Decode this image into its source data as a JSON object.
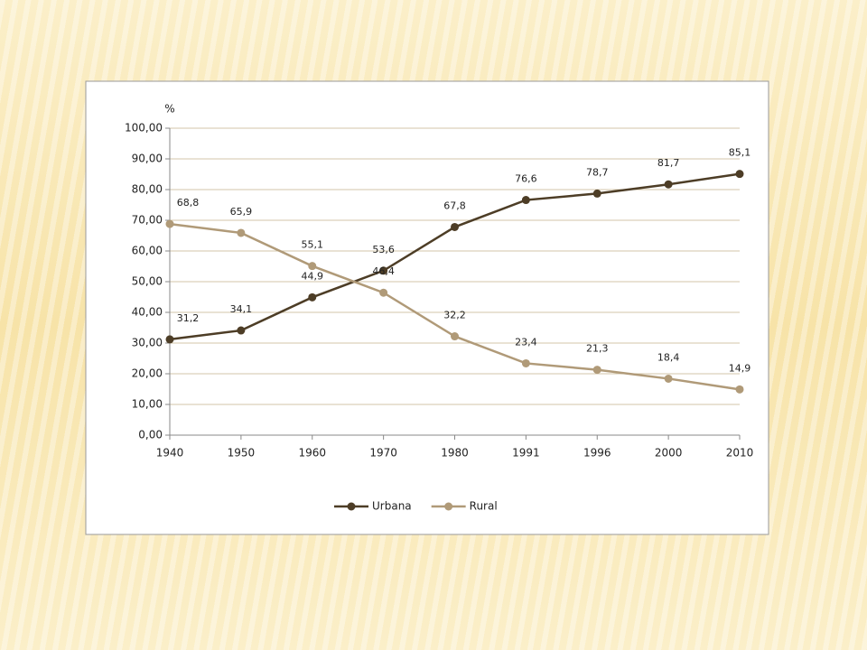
{
  "chart_data": {
    "type": "line",
    "y_label": "%",
    "categories": [
      "1940",
      "1950",
      "1960",
      "1970",
      "1980",
      "1991",
      "1996",
      "2000",
      "2010"
    ],
    "series": [
      {
        "name": "Urbana",
        "color": "#4d3d26",
        "values": [
          31.2,
          34.1,
          44.9,
          53.6,
          67.8,
          76.6,
          78.7,
          81.7,
          85.1
        ],
        "value_labels": [
          "31,2",
          "34,1",
          "44,9",
          "53,6",
          "67,8",
          "76,6",
          "78,7",
          "81,7",
          "85,1"
        ]
      },
      {
        "name": "Rural",
        "color": "#b09a78",
        "values": [
          68.8,
          65.9,
          55.1,
          46.4,
          32.2,
          23.4,
          21.3,
          18.4,
          14.9
        ],
        "value_labels": [
          "68,8",
          "65,9",
          "55,1",
          "46,4",
          "32,2",
          "23,4",
          "21,3",
          "18,4",
          "14,9"
        ]
      }
    ],
    "ylim": [
      0,
      100
    ],
    "yticks": [
      {
        "value": 0,
        "label": "0,00"
      },
      {
        "value": 10,
        "label": "10,00"
      },
      {
        "value": 20,
        "label": "20,00"
      },
      {
        "value": 30,
        "label": "30,00"
      },
      {
        "value": 40,
        "label": "40,00"
      },
      {
        "value": 50,
        "label": "50,00"
      },
      {
        "value": 60,
        "label": "60,00"
      },
      {
        "value": 70,
        "label": "70,00"
      },
      {
        "value": 80,
        "label": "80,00"
      },
      {
        "value": 90,
        "label": "90,00"
      },
      {
        "value": 100,
        "label": "100,00"
      }
    ],
    "grid": true,
    "legend": "bottom"
  }
}
